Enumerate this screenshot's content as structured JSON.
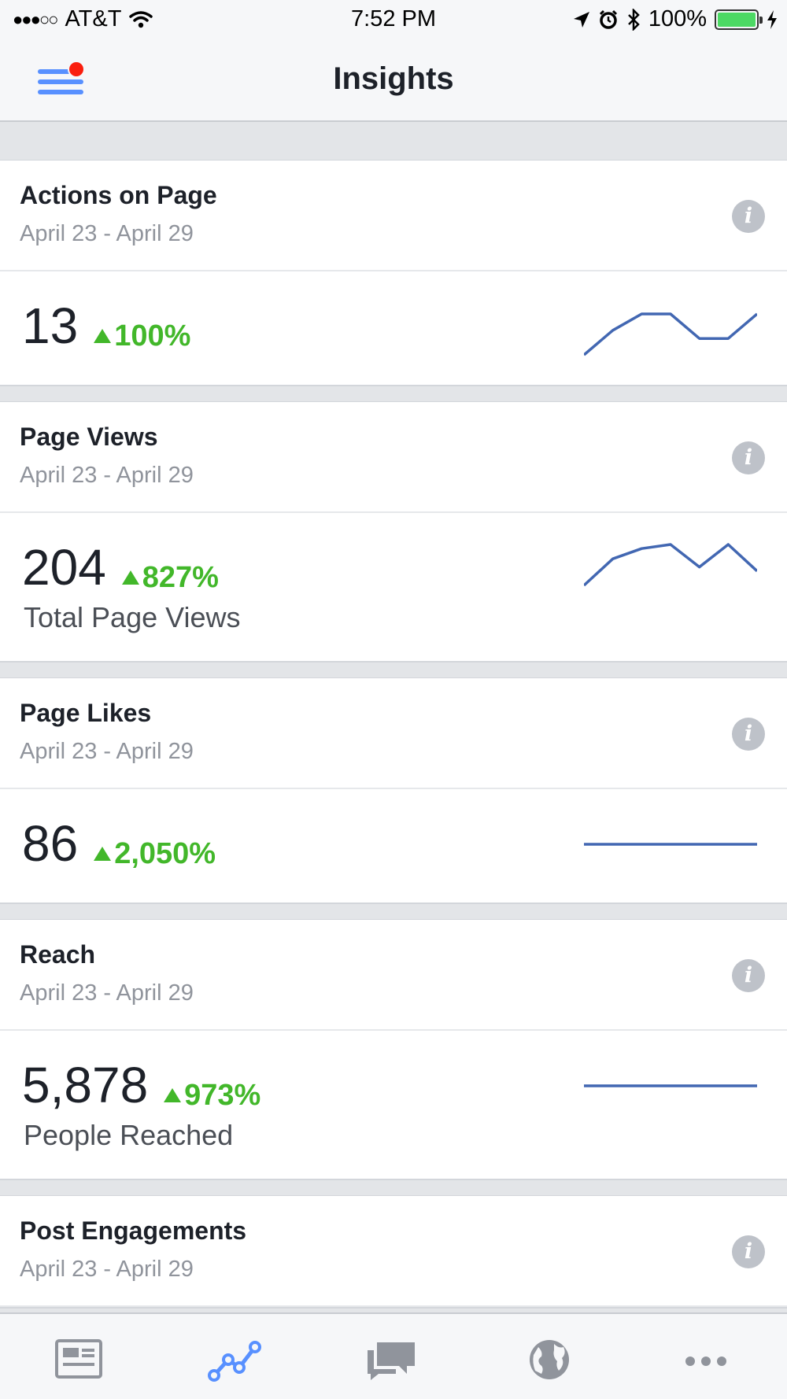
{
  "status": {
    "signal": "●●●○○",
    "carrier": "AT&T",
    "time": "7:52 PM",
    "battery": "100%",
    "battery_level": 1.0
  },
  "nav": {
    "title": "Insights"
  },
  "cards": [
    {
      "title": "Actions on Page",
      "date": "April 23 - April 29",
      "value": "13",
      "change": "100%",
      "subtitle": "",
      "sparkline": [
        0.0,
        0.6,
        1.0,
        1.0,
        0.4,
        0.4,
        1.0
      ]
    },
    {
      "title": "Page Views",
      "date": "April 23 - April 29",
      "value": "204",
      "change": "827%",
      "subtitle": "Total Page Views",
      "sparkline": [
        0.0,
        0.65,
        0.9,
        1.0,
        0.45,
        1.0,
        0.35
      ]
    },
    {
      "title": "Page Likes",
      "date": "April 23 - April 29",
      "value": "86",
      "change": "2,050%",
      "subtitle": "",
      "sparkline": [
        0.5,
        0.5,
        0.5,
        0.5,
        0.5,
        0.5,
        0.5
      ]
    },
    {
      "title": "Reach",
      "date": "April 23 - April 29",
      "value": "5,878",
      "change": "973%",
      "subtitle": "People Reached",
      "sparkline": [
        0.5,
        0.5,
        0.5,
        0.5,
        0.5,
        0.5,
        0.5
      ]
    },
    {
      "title": "Post Engagements",
      "date": "April 23 - April 29"
    }
  ],
  "tabs": [
    {
      "icon": "news-feed-icon",
      "active": false
    },
    {
      "icon": "insights-icon",
      "active": true
    },
    {
      "icon": "messages-icon",
      "active": false
    },
    {
      "icon": "globe-icon",
      "active": false
    },
    {
      "icon": "more-icon",
      "active": false
    }
  ],
  "colors": {
    "accent": "#5890ff",
    "sparkline": "#4267b2",
    "positive": "#42b72a",
    "notification": "#fa1e0e"
  }
}
